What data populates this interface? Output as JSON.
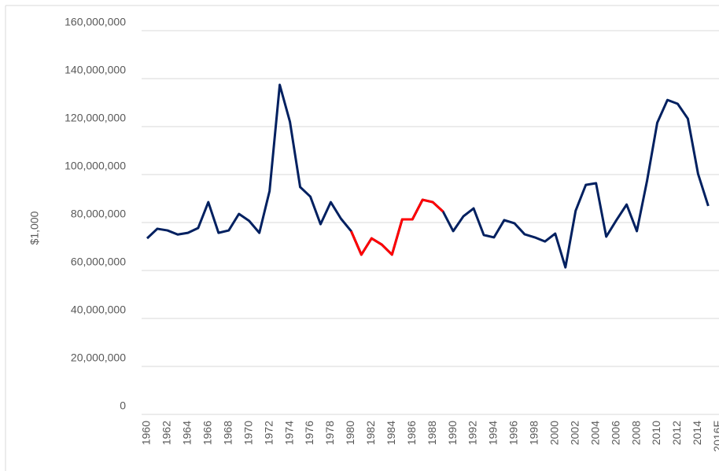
{
  "chart_data": {
    "type": "line",
    "y_label": "$1,000",
    "categories": [
      "1960",
      null,
      "1962",
      null,
      "1964",
      null,
      "1966",
      null,
      "1968",
      null,
      "1970",
      null,
      "1972",
      null,
      "1974",
      null,
      "1976",
      null,
      "1978",
      null,
      "1980",
      null,
      "1982",
      null,
      "1984",
      null,
      "1986",
      null,
      "1988",
      null,
      "1990",
      null,
      "1992",
      null,
      "1994",
      null,
      "1996",
      null,
      "1998",
      null,
      "2000",
      null,
      "2002",
      null,
      "2004",
      null,
      "2006",
      null,
      "2008",
      null,
      "2010",
      null,
      "2012",
      null,
      "2014",
      null,
      "2016F"
    ],
    "series": [
      {
        "color": "#002060",
        "values": [
          73400000,
          77400000,
          76700000,
          75000000,
          75700000,
          77700000,
          88500000,
          75700000,
          76700000,
          83600000,
          80700000,
          75700000,
          93100000,
          137400000,
          122000000,
          94800000,
          90800000,
          79300000,
          88500000,
          81600000,
          76400000,
          66600000,
          73400000,
          70800000,
          66600000,
          81300000,
          81300000,
          89500000,
          88500000,
          84600000,
          76400000,
          82600000,
          85900000,
          74800000,
          73800000,
          81000000,
          79700000,
          75100000,
          73800000,
          72100000,
          75400000,
          61300000,
          84900000,
          95700000,
          96400000,
          74100000,
          81000000,
          87500000,
          76400000,
          97400000,
          121600000,
          131100000,
          129500000,
          123300000,
          100300000,
          86900000,
          null
        ]
      },
      {
        "color": "#ff0000",
        "values": [
          null,
          null,
          null,
          null,
          null,
          null,
          null,
          null,
          null,
          null,
          null,
          null,
          null,
          null,
          null,
          null,
          null,
          null,
          null,
          null,
          76400000,
          66600000,
          73400000,
          70800000,
          66600000,
          81300000,
          81300000,
          89500000,
          88500000,
          84600000,
          null,
          null,
          null,
          null,
          null,
          null,
          null,
          null,
          null,
          null,
          null,
          null,
          null,
          null,
          null,
          null,
          null,
          null,
          null,
          null,
          null,
          null,
          null,
          null,
          null,
          null,
          null
        ]
      }
    ],
    "ylim": [
      0,
      160000000
    ],
    "yticks": [
      {
        "value": 0,
        "label": "0"
      },
      {
        "value": 20000000,
        "label": "20,000,000"
      },
      {
        "value": 40000000,
        "label": "40,000,000"
      },
      {
        "value": 60000000,
        "label": "60,000,000"
      },
      {
        "value": 80000000,
        "label": "80,000,000"
      },
      {
        "value": 100000000,
        "label": "100,000,000"
      },
      {
        "value": 120000000,
        "label": "120,000,000"
      },
      {
        "value": 140000000,
        "label": "140,000,000"
      },
      {
        "value": 160000000,
        "label": "160,000,000"
      }
    ],
    "grid": true
  }
}
